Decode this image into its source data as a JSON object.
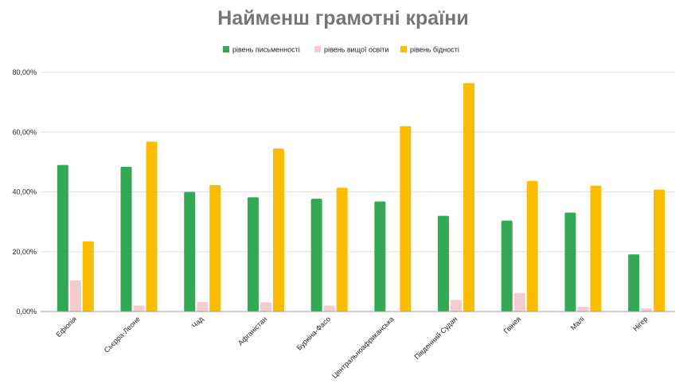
{
  "chart_data": {
    "type": "bar",
    "title": "Найменш грамотні країни",
    "xlabel": "",
    "ylabel": "",
    "ylim": [
      0,
      80
    ],
    "yticks": [
      0,
      20,
      40,
      60,
      80
    ],
    "ytick_labels": [
      "0,00%",
      "20,00%",
      "40,00%",
      "60,00%",
      "80,00%"
    ],
    "grid": true,
    "legend_position": "top",
    "categories": [
      "Ефіопія",
      "Сьєрра-Леоне",
      "Чад",
      "Афганістан",
      "Буркіна-Фасо",
      "Центральноафриканська",
      "Південний Судан",
      "Гвінея",
      "Малі",
      "Нігер"
    ],
    "series": [
      {
        "name": "рівень письменності",
        "color": "#34a853",
        "values": [
          49.0,
          48.4,
          40.0,
          38.2,
          37.7,
          36.8,
          32.0,
          30.4,
          33.1,
          19.1
        ]
      },
      {
        "name": "рівень вищої освіти",
        "color": "#f4cccc",
        "values": [
          10.4,
          2.0,
          3.2,
          3.1,
          2.0,
          0,
          3.9,
          6.2,
          1.6,
          1.0
        ]
      },
      {
        "name": "рівень бідності",
        "color": "#fbbc04",
        "values": [
          23.5,
          56.8,
          42.3,
          54.5,
          41.4,
          62.0,
          76.4,
          43.7,
          42.1,
          40.8
        ]
      }
    ]
  }
}
